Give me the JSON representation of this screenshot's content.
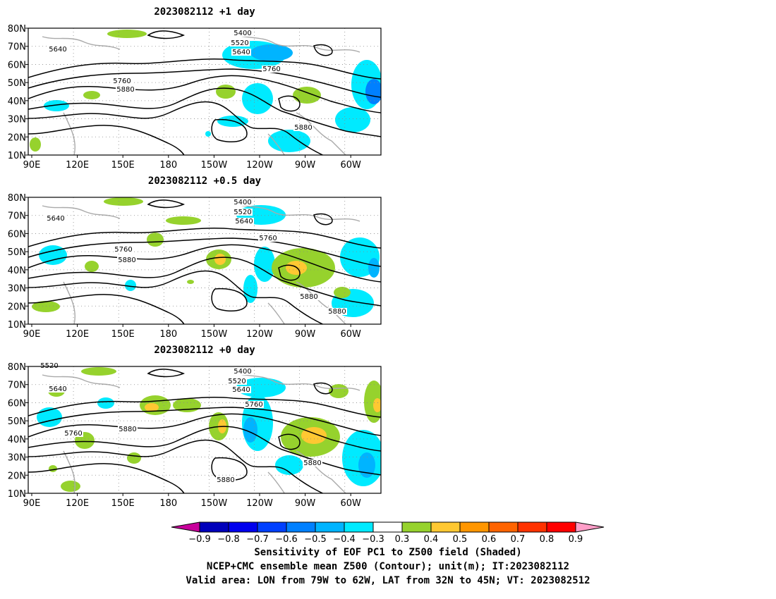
{
  "panels": [
    {
      "title": "2023082112 +1 day",
      "contour_labels": [
        "5400",
        "5520",
        "5640",
        "5640",
        "5760",
        "5760",
        "5880",
        "5880"
      ]
    },
    {
      "title": "2023082112 +0.5 day",
      "contour_labels": [
        "5400",
        "5520",
        "5640",
        "5640",
        "5760",
        "5760",
        "5880",
        "5880",
        "5880"
      ]
    },
    {
      "title": "2023082112 +0 day",
      "contour_labels": [
        "5400",
        "5520",
        "5520",
        "5640",
        "5640",
        "5760",
        "5760",
        "5880",
        "5880",
        "5880"
      ]
    }
  ],
  "axes": {
    "lat_ticks": [
      "80N",
      "70N",
      "60N",
      "50N",
      "40N",
      "30N",
      "20N",
      "10N"
    ],
    "lon_ticks": [
      "90E",
      "120E",
      "150E",
      "180",
      "150W",
      "120W",
      "90W",
      "60W"
    ]
  },
  "colorbar": {
    "ticks": [
      "−0.9",
      "−0.8",
      "−0.7",
      "−0.6",
      "−0.5",
      "−0.4",
      "−0.3",
      "0.3",
      "0.4",
      "0.5",
      "0.6",
      "0.7",
      "0.8",
      "0.9"
    ],
    "colors": [
      "#0000bb",
      "#0000ee",
      "#0040ff",
      "#0080ff",
      "#00b4ff",
      "#00eaff",
      "#ffffff",
      "#96d22d",
      "#ffc832",
      "#ff9600",
      "#ff6400",
      "#ff3200",
      "#ff0000"
    ],
    "under_color": "#c8009b",
    "over_color": "#ff9ec8"
  },
  "captions": [
    "Sensitivity of EOF PC1 to Z500 field (Shaded)",
    "NCEP+CMC ensemble mean Z500 (Contour); unit(m); IT:2023082112",
    "Valid area: LON from 79W to 62W, LAT from 32N to 45N; VT: 2023082512"
  ],
  "palette": {
    "positive": "#96d22d",
    "positive_strong": "#ffc832",
    "negative": "#00eaff",
    "negative_strong": "#00b4ff",
    "negative_stronger": "#0080ff",
    "coast": "#aaaaaa",
    "grid": "#888888"
  }
}
